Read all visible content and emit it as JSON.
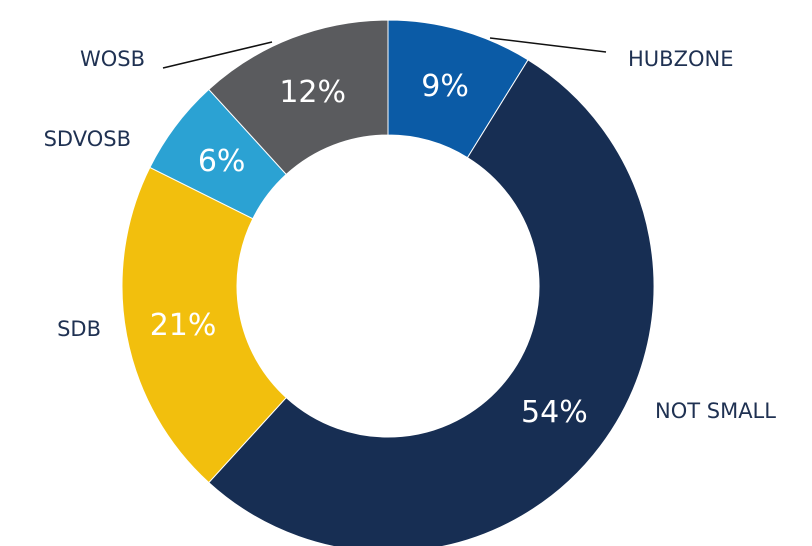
{
  "chart_data": {
    "type": "donut",
    "categories": [
      "HUBZONE",
      "NOT SMALL",
      "SDB",
      "SDVOSB",
      "WOSB"
    ],
    "values": [
      9,
      54,
      21,
      6,
      12
    ],
    "value_labels": [
      "9%",
      "54%",
      "21%",
      "6%",
      "12%"
    ],
    "colors": [
      "#0b5ba6",
      "#172e53",
      "#f2bf0d",
      "#2ba2d3",
      "#5a5b5e"
    ]
  }
}
